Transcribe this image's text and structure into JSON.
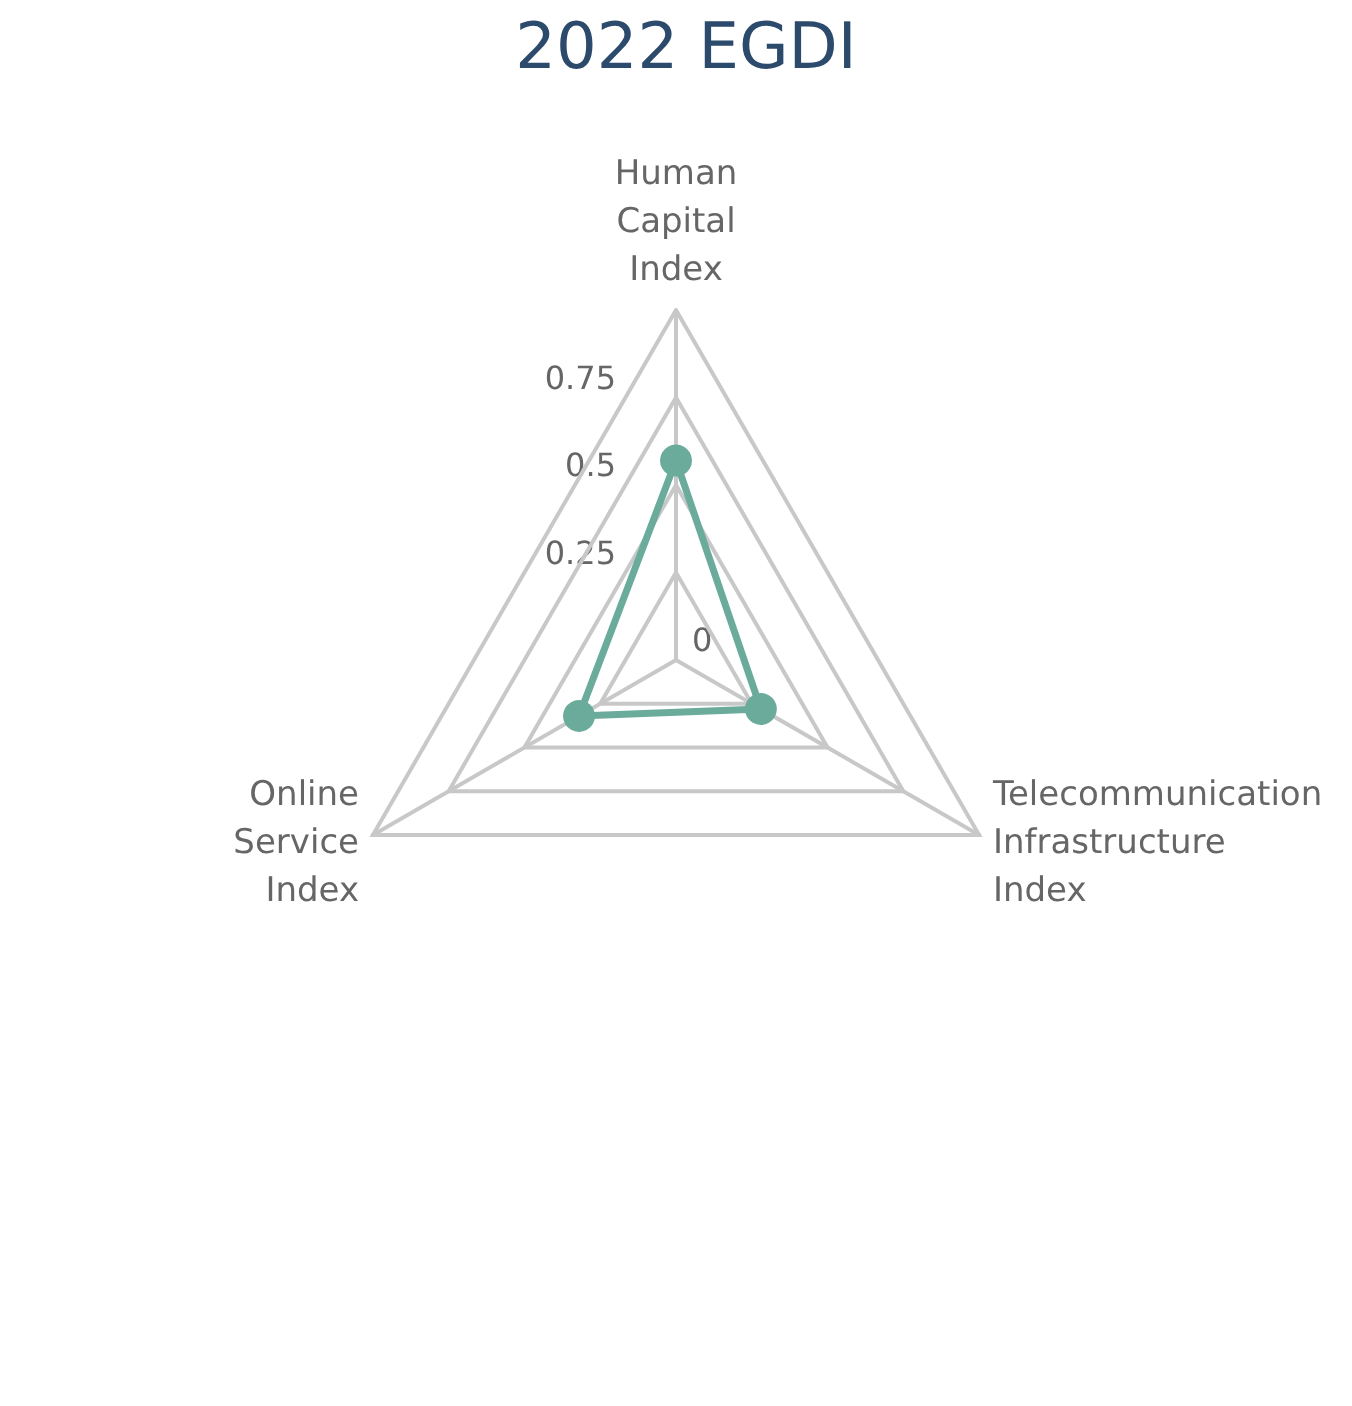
{
  "chart_data": {
    "type": "radar",
    "title": "2022 EGDI",
    "categories": [
      "Human Capital Index",
      "Telecommunication Infrastructure Index",
      "Online Service Index"
    ],
    "series": [
      {
        "color": "#6aab9c",
        "values": [
          0.57,
          0.28,
          0.32
        ]
      }
    ],
    "ylim": [
      0,
      1
    ],
    "yticks": [
      0,
      0.25,
      0.5,
      0.75
    ],
    "marker": "circle"
  }
}
